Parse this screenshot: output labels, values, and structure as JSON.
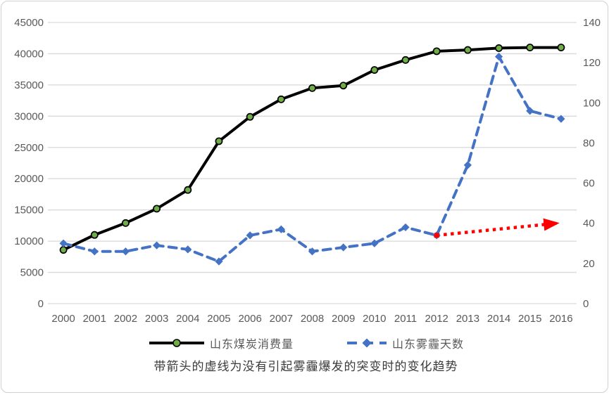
{
  "chart_data": {
    "type": "line",
    "title": "",
    "x": [
      2000,
      2001,
      2002,
      2003,
      2004,
      2005,
      2006,
      2007,
      2008,
      2009,
      2010,
      2011,
      2012,
      2013,
      2014,
      2015,
      2016
    ],
    "series": [
      {
        "name": "山东煤炭消费量",
        "axis": "left",
        "line_style": "solid",
        "color": "#000000",
        "marker": "circle",
        "marker_fill": "#70AD47",
        "values": [
          8600,
          11000,
          12900,
          15200,
          18200,
          26000,
          29900,
          32700,
          34500,
          34900,
          37400,
          39000,
          40400,
          40600,
          40900,
          41000,
          41000
        ]
      },
      {
        "name": "山东雾霾天数",
        "axis": "right",
        "line_style": "dashed",
        "color": "#4472C4",
        "marker": "diamond",
        "marker_fill": "#4472C4",
        "values": [
          30,
          26,
          26,
          29,
          27,
          21,
          34,
          37,
          26,
          28,
          30,
          38,
          34,
          69,
          123,
          96,
          92
        ]
      }
    ],
    "left_axis": {
      "min": 0,
      "max": 45000,
      "step": 5000
    },
    "right_axis": {
      "min": 0,
      "max": 140,
      "step": 20
    },
    "grid": true,
    "legend_position": "bottom",
    "annotation": {
      "style": "dotted-arrow",
      "color": "#FF0000",
      "axis": "right",
      "from": {
        "x": 2012,
        "value": 34
      },
      "to": {
        "x": 2015.85,
        "value": 40
      }
    },
    "colors": {
      "gridline": "#d9d9d9",
      "tick_label": "#595959"
    }
  },
  "caption": "带箭头的虚线为没有引起雾霾爆发的突变时的变化趋势"
}
